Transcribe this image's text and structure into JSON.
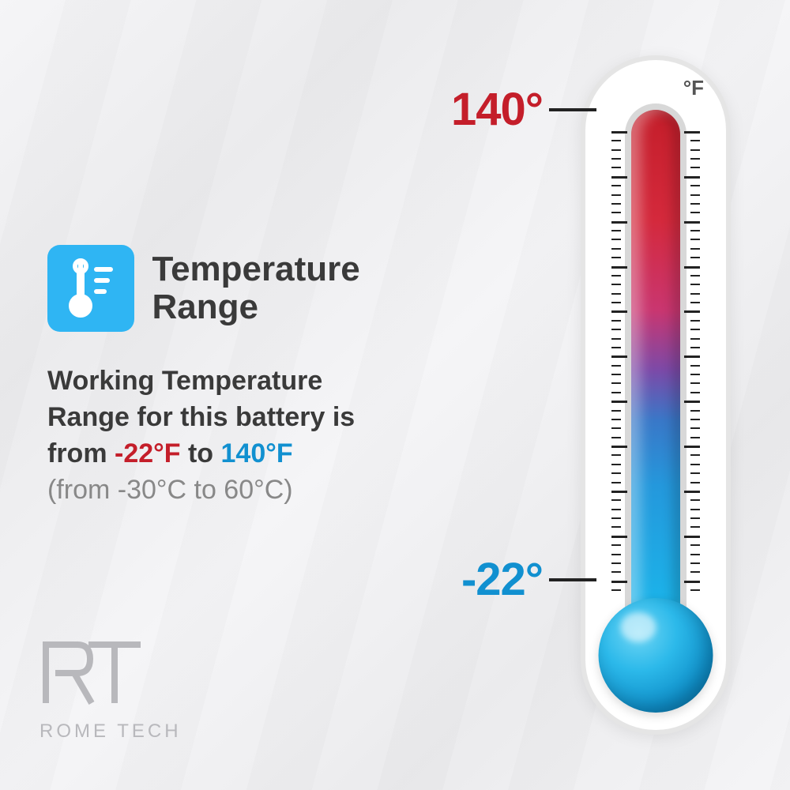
{
  "title": "Temperature\nRange",
  "description": {
    "line1": "Working Temperature",
    "line2": "Range for this battery is",
    "line3_pre": "from ",
    "cold_value": "-22°F",
    "line3_mid": " to ",
    "hot_value": "140°F",
    "celsius": "(from -30°C to 60°C)"
  },
  "thermometer": {
    "unit": "°F",
    "max_label": "140°",
    "min_label": "-22°",
    "max_color": "#c41e2a",
    "min_color": "#1190d0",
    "gradient_top": "#c41e2a",
    "gradient_bottom": "#1bb5ea",
    "bulb_color": "#1bb5ea",
    "body_bg": "#ffffff",
    "body_border": "#e5e5e5",
    "tick_count": 52,
    "major_every": 5
  },
  "icon": {
    "bg_color": "#2fb5f3",
    "fg_color": "#ffffff"
  },
  "logo": {
    "mark": "RT",
    "text": "ROME TECH",
    "color": "#b8b8bc"
  }
}
